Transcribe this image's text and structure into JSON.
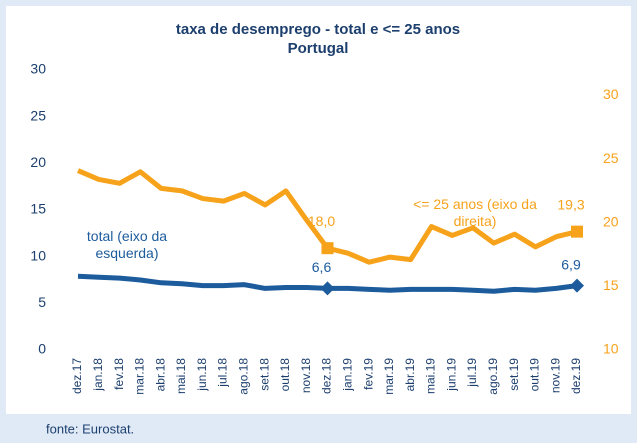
{
  "chart_data": {
    "type": "line",
    "title": "taxa de desemprego - total e <= 25 anos",
    "subtitle": "Portugal",
    "source": "fonte: Eurostat.",
    "categories": [
      "dez.17",
      "jan.18",
      "fev.18",
      "mar.18",
      "abr.18",
      "mai.18",
      "jun.18",
      "jul.18",
      "ago.18",
      "set.18",
      "out.18",
      "nov.18",
      "dez.18",
      "jan.19",
      "fev.19",
      "mar.19",
      "abr.19",
      "mai.19",
      "jun.19",
      "jul.19",
      "ago.19",
      "set.19",
      "out.19",
      "nov.19",
      "dez.19"
    ],
    "series": [
      {
        "name": "total (eixo da esquerda)",
        "color": "#1c5b9c",
        "axis": "y",
        "values": [
          7.9,
          7.8,
          7.7,
          7.5,
          7.2,
          7.1,
          6.9,
          6.9,
          7.0,
          6.6,
          6.7,
          6.7,
          6.6,
          6.6,
          6.5,
          6.4,
          6.5,
          6.5,
          6.5,
          6.4,
          6.3,
          6.5,
          6.4,
          6.6,
          6.9
        ],
        "value_labels": [
          null,
          null,
          null,
          null,
          null,
          null,
          null,
          null,
          null,
          null,
          null,
          null,
          "6,6",
          null,
          null,
          null,
          null,
          null,
          null,
          null,
          null,
          null,
          null,
          null,
          "6,9"
        ]
      },
      {
        "name": "<= 25 anos (eixo da direita)",
        "color": "#f7a21b",
        "axis": "y2",
        "values": [
          24.1,
          23.4,
          23.1,
          24.0,
          22.7,
          22.5,
          21.9,
          21.7,
          22.3,
          21.4,
          22.5,
          20.2,
          18.0,
          17.6,
          16.9,
          17.3,
          17.1,
          19.7,
          19.0,
          19.6,
          18.4,
          19.1,
          18.1,
          18.9,
          19.3
        ],
        "value_labels": [
          null,
          null,
          null,
          null,
          null,
          null,
          null,
          null,
          null,
          null,
          null,
          null,
          "18,0",
          null,
          null,
          null,
          null,
          null,
          null,
          null,
          null,
          null,
          null,
          null,
          "19,3"
        ]
      }
    ],
    "ylim": [
      0,
      30
    ],
    "yticks": [
      0,
      5,
      10,
      15,
      20,
      25,
      30
    ],
    "y2lim": [
      10,
      32
    ],
    "y2ticks": [
      10,
      15,
      20,
      25,
      30
    ]
  }
}
